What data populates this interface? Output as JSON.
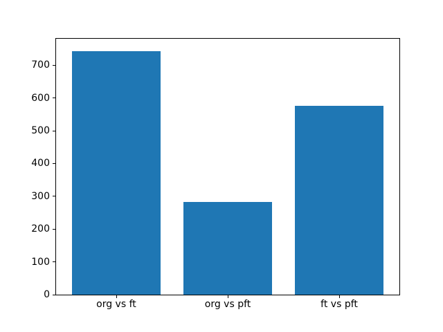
{
  "figure": {
    "background": "#ffffff",
    "axes_color": "#000000",
    "text_color": "#000000"
  },
  "chart_data": {
    "type": "bar",
    "categories": [
      "org vs ft",
      "org vs pft",
      "ft vs pft"
    ],
    "values": [
      744,
      283,
      576
    ],
    "title": "",
    "xlabel": "",
    "ylabel": "",
    "ylim": [
      0,
      781
    ],
    "yticks": [
      0,
      100,
      200,
      300,
      400,
      500,
      600,
      700
    ],
    "bar_color": "#1f77b4",
    "bar_width_fraction": 0.8,
    "grid": false,
    "legend_position": "none"
  }
}
